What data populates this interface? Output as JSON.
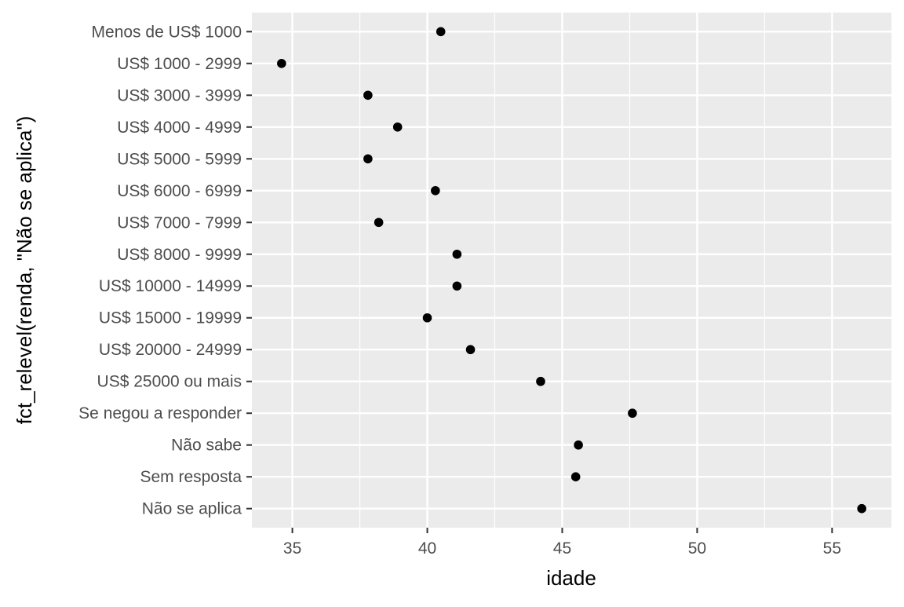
{
  "chart_data": {
    "type": "scatter",
    "title": "",
    "xlabel": "idade",
    "ylabel": "fct_relevel(renda, \"Não se aplica\")",
    "xlim": [
      33.5,
      57.2
    ],
    "xticks": [
      35,
      40,
      45,
      50,
      55
    ],
    "grid": true,
    "legend": "none",
    "categories": [
      "Menos de US$ 1000",
      "US$ 1000 - 2999",
      "US$ 3000 - 3999",
      "US$ 4000 - 4999",
      "US$ 5000 - 5999",
      "US$ 6000 - 6999",
      "US$ 7000 - 7999",
      "US$ 8000 - 9999",
      "US$ 10000 - 14999",
      "US$ 15000 - 19999",
      "US$ 20000 - 24999",
      "US$ 25000 ou mais",
      "Se negou a responder",
      "Não sabe",
      "Sem resposta",
      "Não se aplica"
    ],
    "values": [
      40.5,
      34.6,
      37.8,
      38.9,
      37.8,
      40.3,
      38.2,
      41.1,
      41.1,
      40.0,
      41.6,
      44.2,
      47.6,
      45.6,
      45.5,
      56.1
    ],
    "colors": {
      "panel": "#ebebeb",
      "grid_major": "#ffffff",
      "point": "#000000",
      "tick_text": "#4d4d4d",
      "axis_title": "#000000"
    }
  }
}
